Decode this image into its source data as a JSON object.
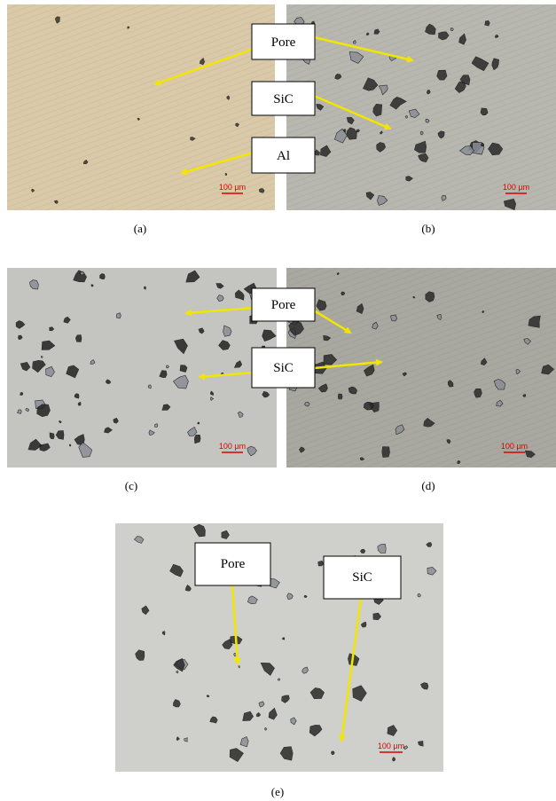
{
  "figure": {
    "panels": [
      {
        "label": "(a)",
        "scale_bar": "100 µm"
      },
      {
        "label": "(b)",
        "scale_bar": "100 µm"
      },
      {
        "label": "(c)",
        "scale_bar": "100 µm"
      },
      {
        "label": "(d)",
        "scale_bar": "100 µm"
      },
      {
        "label": "(e)",
        "scale_bar": "100 µm"
      }
    ],
    "callouts": [
      {
        "text": "Pore"
      },
      {
        "text": "SiC"
      },
      {
        "text": "Al"
      },
      {
        "text": "Pore"
      },
      {
        "text": "SiC"
      },
      {
        "text": "Pore"
      },
      {
        "text": "SiC"
      }
    ]
  }
}
